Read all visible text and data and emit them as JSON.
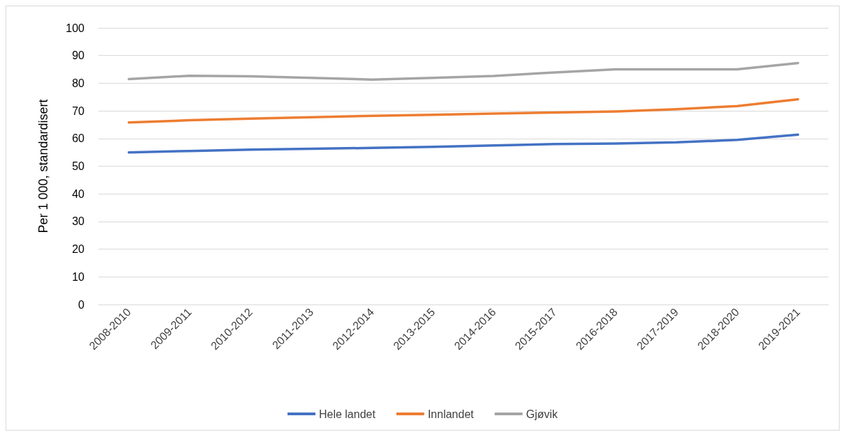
{
  "chart_data": {
    "type": "line",
    "ylabel": "Per 1 000, standardisert",
    "categories": [
      "2008-2010",
      "2009-2011",
      "2010-2012",
      "2011-2013",
      "2012-2014",
      "2013-2015",
      "2014-2016",
      "2015-2017",
      "2016-2018",
      "2017-2019",
      "2018-2020",
      "2019-2021"
    ],
    "series": [
      {
        "name": "Hele landet",
        "color": "#4472c4",
        "values": [
          55,
          55.5,
          56,
          56.3,
          56.6,
          57,
          57.5,
          58,
          58.2,
          58.6,
          59.5,
          61.4
        ]
      },
      {
        "name": "Innlandet",
        "color": "#ed7d31",
        "values": [
          65.8,
          66.6,
          67.2,
          67.7,
          68.2,
          68.6,
          69,
          69.4,
          69.8,
          70.6,
          71.7,
          74.2
        ]
      },
      {
        "name": "Gjøvik",
        "color": "#a5a5a5",
        "values": [
          81.5,
          82.7,
          82.5,
          81.9,
          81.3,
          81.9,
          82.6,
          83.9,
          85,
          85,
          85,
          87.3
        ]
      }
    ],
    "ylim": [
      0,
      100
    ],
    "yticks": [
      0,
      10,
      20,
      30,
      40,
      50,
      60,
      70,
      80,
      90,
      100
    ],
    "grid": "y",
    "legend": "bottom",
    "marker": "none",
    "line_style": "solid"
  }
}
